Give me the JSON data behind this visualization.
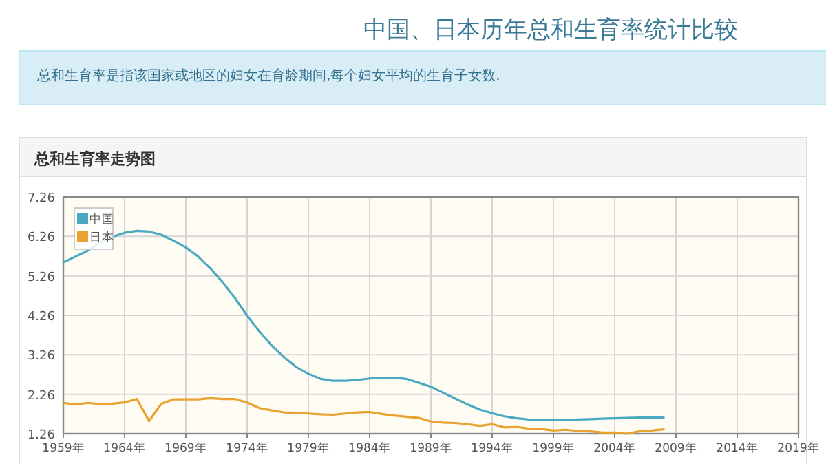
{
  "chart_data": {
    "type": "line",
    "title": "中国、日本历年总和生育率统计比较",
    "subtitle": "总和生育率是指该国家或地区的妇女在育龄期间,每个妇女平均的生育子女数.",
    "annotations": [
      "总和生育率走势图"
    ],
    "x": [
      1959,
      1960,
      1961,
      1962,
      1963,
      1964,
      1965,
      1966,
      1967,
      1968,
      1969,
      1970,
      1971,
      1972,
      1973,
      1974,
      1975,
      1976,
      1977,
      1978,
      1979,
      1980,
      1981,
      1982,
      1983,
      1984,
      1985,
      1986,
      1987,
      1988,
      1989,
      1990,
      1991,
      1992,
      1993,
      1994,
      1995,
      1996,
      1997,
      1998,
      1999,
      2000,
      2001,
      2002,
      2003,
      2004,
      2005,
      2006,
      2007,
      2008
    ],
    "series": [
      {
        "name": "中国",
        "color": "#4aa9c0",
        "values": [
          5.6,
          5.75,
          5.9,
          6.1,
          6.25,
          6.35,
          6.4,
          6.38,
          6.3,
          6.15,
          5.98,
          5.75,
          5.45,
          5.1,
          4.7,
          4.25,
          3.85,
          3.5,
          3.2,
          2.95,
          2.78,
          2.65,
          2.6,
          2.6,
          2.62,
          2.66,
          2.68,
          2.68,
          2.65,
          2.55,
          2.45,
          2.3,
          2.15,
          2.0,
          1.87,
          1.78,
          1.7,
          1.65,
          1.62,
          1.6,
          1.6,
          1.61,
          1.62,
          1.63,
          1.64,
          1.65,
          1.66,
          1.67,
          1.67,
          1.67
        ]
      },
      {
        "name": "日本",
        "color": "#e9a22f",
        "values": [
          2.04,
          2.0,
          2.04,
          2.01,
          2.02,
          2.05,
          2.14,
          1.58,
          2.02,
          2.13,
          2.13,
          2.13,
          2.16,
          2.14,
          2.14,
          2.05,
          1.91,
          1.85,
          1.8,
          1.79,
          1.77,
          1.75,
          1.74,
          1.77,
          1.8,
          1.81,
          1.76,
          1.72,
          1.69,
          1.66,
          1.57,
          1.54,
          1.53,
          1.5,
          1.46,
          1.5,
          1.42,
          1.43,
          1.39,
          1.38,
          1.34,
          1.36,
          1.33,
          1.32,
          1.29,
          1.29,
          1.26,
          1.32,
          1.34,
          1.37
        ]
      }
    ],
    "xlim": [
      1959,
      2019
    ],
    "ylim": [
      1.26,
      7.26
    ],
    "xticks": [
      {
        "value": 1959,
        "label": "1959年"
      },
      {
        "value": 1964,
        "label": "1964年"
      },
      {
        "value": 1969,
        "label": "1969年"
      },
      {
        "value": 1974,
        "label": "1974年"
      },
      {
        "value": 1979,
        "label": "1979年"
      },
      {
        "value": 1984,
        "label": "1984年"
      },
      {
        "value": 1989,
        "label": "1989年"
      },
      {
        "value": 1994,
        "label": "1994年"
      },
      {
        "value": 1999,
        "label": "1999年"
      },
      {
        "value": 2004,
        "label": "2004年"
      },
      {
        "value": 2009,
        "label": "2009年"
      },
      {
        "value": 2014,
        "label": "2014年"
      },
      {
        "value": 2019,
        "label": "2019年"
      }
    ],
    "yticks": [
      1.26,
      2.26,
      3.26,
      4.26,
      5.26,
      6.26,
      7.26
    ],
    "grid": true,
    "legend": "top left",
    "marker": "none",
    "line_style": "solid"
  }
}
